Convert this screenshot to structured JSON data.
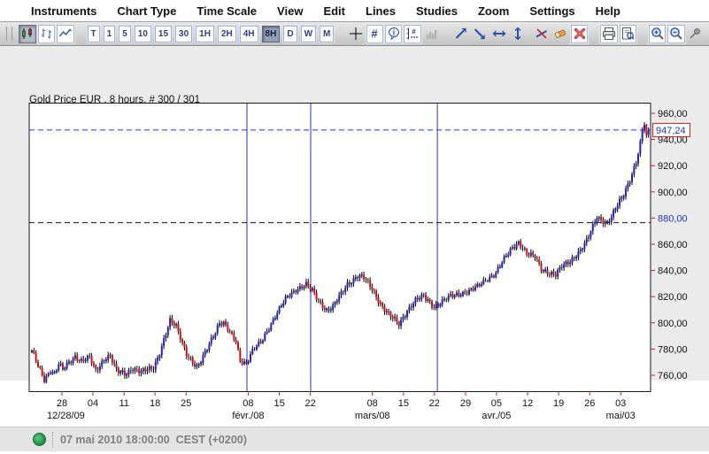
{
  "menu": {
    "items": [
      "Instruments",
      "Chart Type",
      "Time Scale",
      "View",
      "Edit",
      "Lines",
      "Studies",
      "Zoom",
      "Settings",
      "Help"
    ]
  },
  "toolbar": {
    "chart_types": [
      {
        "name": "candlestick-chart",
        "active": true
      },
      {
        "name": "ohlc-bar-chart",
        "active": false
      },
      {
        "name": "line-chart",
        "active": false
      }
    ],
    "timescales": [
      {
        "label": "T",
        "active": false
      },
      {
        "label": "1",
        "active": false
      },
      {
        "label": "5",
        "active": false
      },
      {
        "label": "10",
        "active": false
      },
      {
        "label": "15",
        "active": false
      },
      {
        "label": "30",
        "active": false
      },
      {
        "label": "1H",
        "active": false
      },
      {
        "label": "2H",
        "active": false
      },
      {
        "label": "4H",
        "active": false
      },
      {
        "label": "8H",
        "active": true
      },
      {
        "label": "D",
        "active": false
      },
      {
        "label": "W",
        "active": false
      },
      {
        "label": "M",
        "active": false
      }
    ],
    "tools": [
      "crosshair",
      "grid",
      "info-bubble",
      "axis-values",
      "volume-bars",
      "trendline-up",
      "trendline-down",
      "trendline-horizontal",
      "trendline-vertical",
      "delete-line",
      "eraser",
      "delete-all",
      "print",
      "print-preview",
      "zoom-in",
      "zoom-out",
      "pin"
    ]
  },
  "chart": {
    "title": "Gold Price EUR , 8 hours, # 300 / 301"
  },
  "chart_data": {
    "type": "candlestick",
    "instrument": "Gold Price EUR",
    "timeframe": "8 hours",
    "bar_count_label": "# 300 / 301",
    "bars_visible": 300,
    "last_price": 947.24,
    "last_price_label": "947,24",
    "up_color": "#2222bb",
    "down_color": "#cc1111",
    "wick_color": "#000000",
    "y_axis": {
      "anchor_price": 760,
      "tick_color": "#cc2222",
      "label_color": "#111111",
      "highlight_value": 880,
      "highlight_color": "#2233cc",
      "ticks": [
        {
          "value": 760,
          "label": "760,00"
        },
        {
          "value": 780,
          "label": "780,00"
        },
        {
          "value": 800,
          "label": "800,00"
        },
        {
          "value": 820,
          "label": "820,00"
        },
        {
          "value": 840,
          "label": "840,00"
        },
        {
          "value": 860,
          "label": "860,00"
        },
        {
          "value": 880,
          "label": "880,00"
        },
        {
          "value": 900,
          "label": "900,00"
        },
        {
          "value": 920,
          "label": "920,00"
        },
        {
          "value": 940,
          "label": "940,00"
        },
        {
          "value": 960,
          "label": "960,00"
        }
      ]
    },
    "x_axis": {
      "day_ticks": [
        {
          "bar": 14.6,
          "label": "28"
        },
        {
          "bar": 29.6,
          "label": "04"
        },
        {
          "bar": 44.7,
          "label": "11"
        },
        {
          "bar": 59.7,
          "label": "18"
        },
        {
          "bar": 74.8,
          "label": "25"
        },
        {
          "bar": 104.9,
          "label": "08"
        },
        {
          "bar": 120.0,
          "label": "15"
        },
        {
          "bar": 135.0,
          "label": "22"
        },
        {
          "bar": 165.1,
          "label": "08"
        },
        {
          "bar": 180.2,
          "label": "15"
        },
        {
          "bar": 195.2,
          "label": "22"
        },
        {
          "bar": 210.3,
          "label": "29"
        },
        {
          "bar": 225.3,
          "label": "05"
        },
        {
          "bar": 240.4,
          "label": "12"
        },
        {
          "bar": 255.4,
          "label": "19"
        },
        {
          "bar": 270.5,
          "label": "26"
        },
        {
          "bar": 285.5,
          "label": "03"
        }
      ],
      "month_labels": [
        {
          "bar": 16.5,
          "label": "12/28/09"
        },
        {
          "bar": 104.9,
          "label": "févr./08"
        },
        {
          "bar": 165.1,
          "label": "mars/08"
        },
        {
          "bar": 225.3,
          "label": "avr./05"
        },
        {
          "bar": 285.5,
          "label": "mai/03"
        }
      ]
    },
    "horizontal_lines": [
      {
        "price": 947.24,
        "color": "#2233dd",
        "style": "dashed",
        "name": "last-price-line"
      },
      {
        "price": 876.5,
        "color": "#111111",
        "style": "dashed",
        "name": "horizontal-user-line"
      }
    ],
    "vertical_lines": [
      {
        "bar": 104.3
      },
      {
        "bar": 135.2
      },
      {
        "bar": 196.6
      }
    ],
    "vertical_line_color": "#2233cc",
    "price_path": [
      [
        0,
        778
      ],
      [
        2,
        770
      ],
      [
        6,
        757
      ],
      [
        9,
        764
      ],
      [
        11,
        761
      ],
      [
        13,
        768
      ],
      [
        15,
        764
      ],
      [
        21,
        775
      ],
      [
        24,
        771
      ],
      [
        28,
        773
      ],
      [
        31,
        763
      ],
      [
        35,
        773
      ],
      [
        38,
        775
      ],
      [
        41,
        763
      ],
      [
        45,
        761
      ],
      [
        49,
        766
      ],
      [
        53,
        762
      ],
      [
        59,
        766
      ],
      [
        62,
        778
      ],
      [
        65,
        792
      ],
      [
        67,
        801
      ],
      [
        70,
        797
      ],
      [
        75,
        777
      ],
      [
        80,
        765
      ],
      [
        82,
        770
      ],
      [
        87,
        788
      ],
      [
        91,
        800
      ],
      [
        93,
        799
      ],
      [
        96,
        792
      ],
      [
        99,
        786
      ],
      [
        101,
        772
      ],
      [
        104,
        769
      ],
      [
        107,
        778
      ],
      [
        111,
        785
      ],
      [
        115,
        797
      ],
      [
        120,
        810
      ],
      [
        124,
        820
      ],
      [
        128,
        826
      ],
      [
        133,
        829
      ],
      [
        136,
        824
      ],
      [
        139,
        817
      ],
      [
        143,
        810
      ],
      [
        146,
        812
      ],
      [
        150,
        822
      ],
      [
        153,
        830
      ],
      [
        158,
        836
      ],
      [
        161,
        834
      ],
      [
        165,
        826
      ],
      [
        169,
        815
      ],
      [
        173,
        806
      ],
      [
        178,
        799
      ],
      [
        182,
        810
      ],
      [
        186,
        817
      ],
      [
        190,
        820
      ],
      [
        195,
        813
      ],
      [
        199,
        816
      ],
      [
        203,
        820
      ],
      [
        208,
        823
      ],
      [
        212,
        824
      ],
      [
        216,
        827
      ],
      [
        220,
        833
      ],
      [
        225,
        838
      ],
      [
        229,
        848
      ],
      [
        233,
        858
      ],
      [
        236,
        862
      ],
      [
        240,
        852
      ],
      [
        244,
        850
      ],
      [
        247,
        842
      ],
      [
        251,
        838
      ],
      [
        254,
        836
      ],
      [
        257,
        843
      ],
      [
        261,
        848
      ],
      [
        266,
        855
      ],
      [
        269,
        862
      ],
      [
        272,
        874
      ],
      [
        274,
        882
      ],
      [
        276,
        879
      ],
      [
        279,
        876
      ],
      [
        281,
        880
      ],
      [
        284,
        890
      ],
      [
        287,
        899
      ],
      [
        290,
        910
      ],
      [
        293,
        922
      ],
      [
        295,
        936
      ],
      [
        296,
        946
      ],
      [
        297,
        952
      ],
      [
        298,
        942
      ],
      [
        299,
        947.24
      ]
    ],
    "texture": {
      "wave": [
        1.7,
        1.9,
        1.1,
        0.47
      ],
      "wick": [
        0.7,
        1.8
      ]
    }
  },
  "status_bar": {
    "timestamp": "07 mai 2010 18:00:00  CEST (+0200)",
    "connection_color": "#2d9e55"
  }
}
